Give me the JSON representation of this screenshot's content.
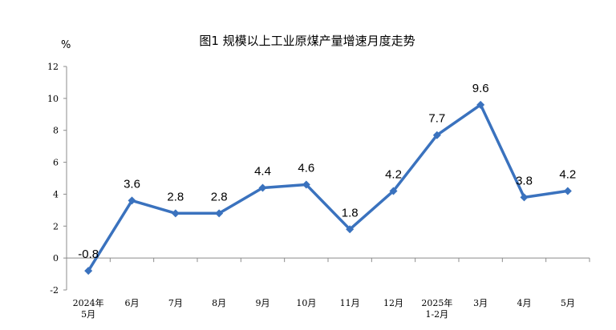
{
  "chart_data": {
    "type": "line",
    "title": "图1  规模以上工业原煤产量增速月度走势",
    "ylabel": "%",
    "xlabel": "",
    "ylim": [
      -2,
      12
    ],
    "yticks": [
      -2,
      0,
      2,
      4,
      6,
      8,
      10,
      12
    ],
    "grid": false,
    "legend": "none",
    "categories": [
      [
        "2024年",
        "5月"
      ],
      [
        "6月"
      ],
      [
        "7月"
      ],
      [
        "8月"
      ],
      [
        "9月"
      ],
      [
        "10月"
      ],
      [
        "11月"
      ],
      [
        "12月"
      ],
      [
        "2025年",
        "1-2月"
      ],
      [
        "3月"
      ],
      [
        "4月"
      ],
      [
        "5月"
      ]
    ],
    "series": [
      {
        "values": [
          -0.8,
          3.6,
          2.8,
          2.8,
          4.4,
          4.6,
          1.8,
          4.2,
          7.7,
          9.6,
          3.8,
          4.2
        ],
        "labels": [
          "-0.8",
          "3.6",
          "2.8",
          "2.8",
          "4.4",
          "4.6",
          "1.8",
          "4.2",
          "7.7",
          "9.6",
          "3.8",
          "4.2"
        ],
        "color": "#3a72be"
      }
    ],
    "axis_color": "#8c8c8c"
  }
}
